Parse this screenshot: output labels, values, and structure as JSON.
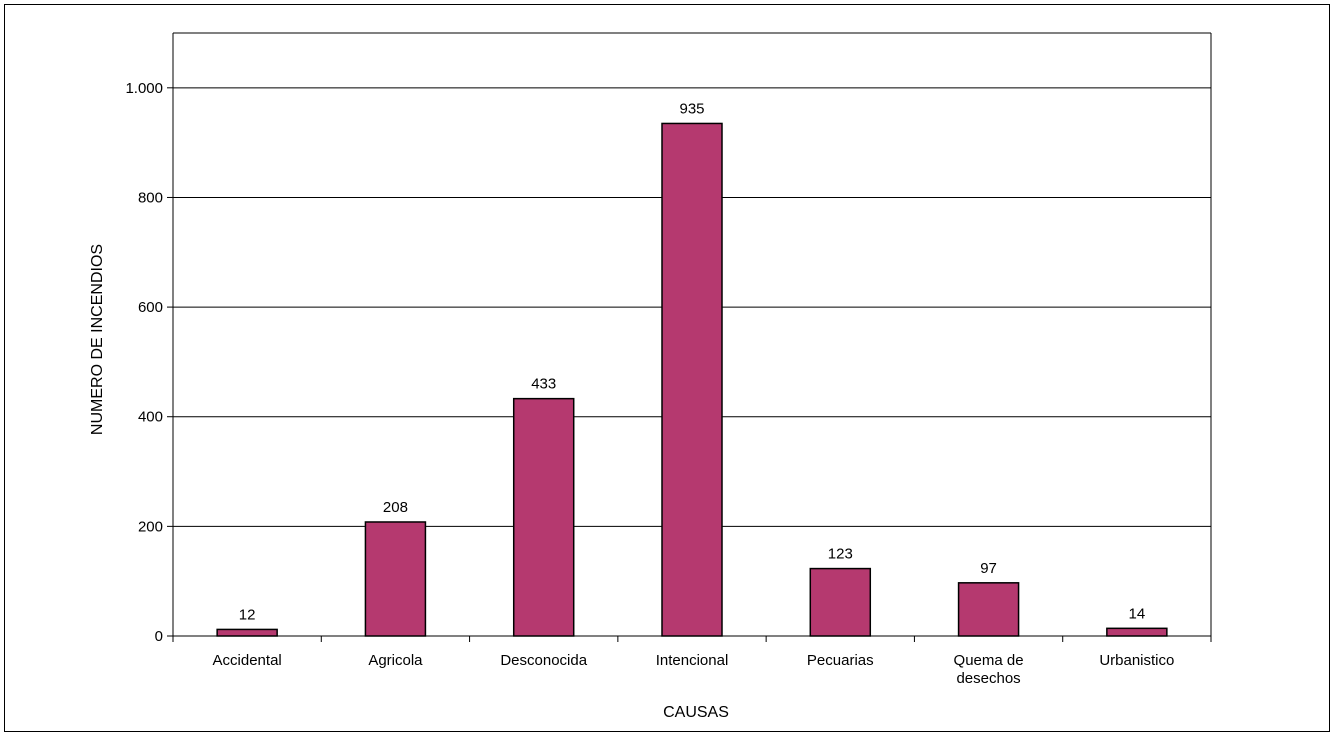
{
  "chart_data": {
    "type": "bar",
    "title": "",
    "xlabel": "CAUSAS",
    "ylabel": "NUMERO DE INCENDIOS",
    "categories": [
      "Accidental",
      "Agricola",
      "Desconocida",
      "Intencional",
      "Pecuarias",
      "Quema de desechos",
      "Urbanistico"
    ],
    "category_label_lines": [
      [
        "Accidental"
      ],
      [
        "Agricola"
      ],
      [
        "Desconocida"
      ],
      [
        "Intencional"
      ],
      [
        "Pecuarias"
      ],
      [
        "Quema de",
        "desechos"
      ],
      [
        "Urbanistico"
      ]
    ],
    "values": [
      12,
      208,
      433,
      935,
      123,
      97,
      14
    ],
    "data_labels": [
      "12",
      "208",
      "433",
      "935",
      "123",
      "97",
      "14"
    ],
    "ylim": [
      0,
      1100
    ],
    "yticks": [
      0,
      200,
      400,
      600,
      800,
      1000
    ],
    "ytick_labels": [
      "0",
      "200",
      "400",
      "600",
      "800",
      "1.000"
    ],
    "grid": true,
    "legend": "none",
    "colors": {
      "bar": "#b5396f",
      "bar_stroke": "#000000",
      "grid": "#000000"
    }
  }
}
